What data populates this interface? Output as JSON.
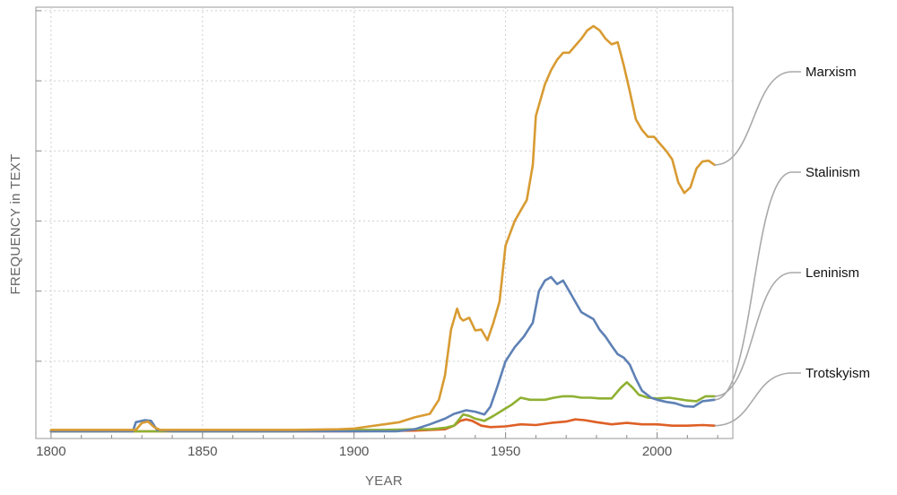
{
  "chart_data": {
    "type": "line",
    "xlabel": "YEAR",
    "ylabel": "FREQUENCY in TEXT",
    "xlim": [
      1795,
      2025
    ],
    "ylim": [
      0,
      6.05
    ],
    "x_ticks": [
      "1800",
      "1850",
      "1900",
      "1950",
      "2000"
    ],
    "grid": true,
    "legend": "right, labels connected to line ends",
    "y_scale": "relative (no tick labels)",
    "series": [
      {
        "name": "Marxism",
        "color": "#D89B32",
        "points": [
          [
            1800,
            0.02
          ],
          [
            1810,
            0.02
          ],
          [
            1826,
            0.02
          ],
          [
            1828,
            0.02
          ],
          [
            1830,
            0.12
          ],
          [
            1832,
            0.14
          ],
          [
            1834,
            0.06
          ],
          [
            1836,
            0.02
          ],
          [
            1850,
            0.02
          ],
          [
            1880,
            0.02
          ],
          [
            1895,
            0.03
          ],
          [
            1900,
            0.04
          ],
          [
            1905,
            0.07
          ],
          [
            1910,
            0.1
          ],
          [
            1915,
            0.13
          ],
          [
            1920,
            0.2
          ],
          [
            1925,
            0.25
          ],
          [
            1928,
            0.45
          ],
          [
            1930,
            0.8
          ],
          [
            1932,
            1.45
          ],
          [
            1934,
            1.75
          ],
          [
            1935,
            1.62
          ],
          [
            1936,
            1.58
          ],
          [
            1938,
            1.62
          ],
          [
            1940,
            1.44
          ],
          [
            1942,
            1.45
          ],
          [
            1944,
            1.3
          ],
          [
            1946,
            1.55
          ],
          [
            1948,
            1.85
          ],
          [
            1950,
            2.65
          ],
          [
            1953,
            3.0
          ],
          [
            1955,
            3.15
          ],
          [
            1957,
            3.3
          ],
          [
            1959,
            3.8
          ],
          [
            1960,
            4.5
          ],
          [
            1963,
            4.95
          ],
          [
            1965,
            5.15
          ],
          [
            1967,
            5.3
          ],
          [
            1969,
            5.4
          ],
          [
            1971,
            5.4
          ],
          [
            1973,
            5.5
          ],
          [
            1975,
            5.6
          ],
          [
            1977,
            5.72
          ],
          [
            1979,
            5.78
          ],
          [
            1981,
            5.72
          ],
          [
            1983,
            5.6
          ],
          [
            1985,
            5.52
          ],
          [
            1987,
            5.55
          ],
          [
            1989,
            5.22
          ],
          [
            1991,
            4.85
          ],
          [
            1993,
            4.45
          ],
          [
            1995,
            4.3
          ],
          [
            1997,
            4.2
          ],
          [
            1999,
            4.2
          ],
          [
            2001,
            4.1
          ],
          [
            2003,
            4.0
          ],
          [
            2005,
            3.88
          ],
          [
            2007,
            3.55
          ],
          [
            2009,
            3.4
          ],
          [
            2011,
            3.48
          ],
          [
            2013,
            3.75
          ],
          [
            2015,
            3.85
          ],
          [
            2017,
            3.86
          ],
          [
            2019,
            3.8
          ]
        ]
      },
      {
        "name": "Stalinism",
        "color": "#5E81B5",
        "points": [
          [
            1800,
            0.0
          ],
          [
            1827,
            0.0
          ],
          [
            1828,
            0.13
          ],
          [
            1831,
            0.16
          ],
          [
            1833,
            0.15
          ],
          [
            1835,
            0.02
          ],
          [
            1840,
            0.0
          ],
          [
            1900,
            0.0
          ],
          [
            1914,
            0.0
          ],
          [
            1920,
            0.03
          ],
          [
            1925,
            0.1
          ],
          [
            1930,
            0.18
          ],
          [
            1933,
            0.25
          ],
          [
            1937,
            0.3
          ],
          [
            1940,
            0.28
          ],
          [
            1943,
            0.24
          ],
          [
            1945,
            0.35
          ],
          [
            1947,
            0.6
          ],
          [
            1950,
            1.0
          ],
          [
            1953,
            1.2
          ],
          [
            1956,
            1.35
          ],
          [
            1959,
            1.55
          ],
          [
            1961,
            2.0
          ],
          [
            1963,
            2.15
          ],
          [
            1965,
            2.2
          ],
          [
            1967,
            2.1
          ],
          [
            1969,
            2.15
          ],
          [
            1971,
            2.0
          ],
          [
            1973,
            1.85
          ],
          [
            1975,
            1.7
          ],
          [
            1977,
            1.65
          ],
          [
            1979,
            1.6
          ],
          [
            1981,
            1.45
          ],
          [
            1983,
            1.35
          ],
          [
            1985,
            1.22
          ],
          [
            1987,
            1.1
          ],
          [
            1989,
            1.05
          ],
          [
            1991,
            0.95
          ],
          [
            1993,
            0.75
          ],
          [
            1995,
            0.58
          ],
          [
            1998,
            0.48
          ],
          [
            2000,
            0.45
          ],
          [
            2003,
            0.42
          ],
          [
            2006,
            0.4
          ],
          [
            2009,
            0.36
          ],
          [
            2012,
            0.35
          ],
          [
            2015,
            0.43
          ],
          [
            2019,
            0.45
          ]
        ]
      },
      {
        "name": "Leninism",
        "color": "#8FB032",
        "points": [
          [
            1800,
            0.0
          ],
          [
            1880,
            0.0
          ],
          [
            1890,
            0.02
          ],
          [
            1900,
            0.02
          ],
          [
            1910,
            0.02
          ],
          [
            1920,
            0.03
          ],
          [
            1925,
            0.03
          ],
          [
            1930,
            0.05
          ],
          [
            1933,
            0.08
          ],
          [
            1936,
            0.24
          ],
          [
            1938,
            0.22
          ],
          [
            1940,
            0.18
          ],
          [
            1943,
            0.15
          ],
          [
            1946,
            0.22
          ],
          [
            1949,
            0.3
          ],
          [
            1952,
            0.38
          ],
          [
            1955,
            0.48
          ],
          [
            1958,
            0.45
          ],
          [
            1960,
            0.45
          ],
          [
            1963,
            0.45
          ],
          [
            1966,
            0.48
          ],
          [
            1969,
            0.5
          ],
          [
            1972,
            0.5
          ],
          [
            1975,
            0.48
          ],
          [
            1978,
            0.48
          ],
          [
            1981,
            0.47
          ],
          [
            1985,
            0.47
          ],
          [
            1988,
            0.62
          ],
          [
            1990,
            0.7
          ],
          [
            1992,
            0.62
          ],
          [
            1994,
            0.52
          ],
          [
            1997,
            0.48
          ],
          [
            2000,
            0.47
          ],
          [
            2004,
            0.48
          ],
          [
            2007,
            0.46
          ],
          [
            2010,
            0.44
          ],
          [
            2013,
            0.43
          ],
          [
            2016,
            0.5
          ],
          [
            2019,
            0.5
          ]
        ]
      },
      {
        "name": "Trotskyism",
        "color": "#DE6026",
        "points": [
          [
            1800,
            0.0
          ],
          [
            1900,
            0.0
          ],
          [
            1920,
            0.01
          ],
          [
            1930,
            0.03
          ],
          [
            1933,
            0.08
          ],
          [
            1935,
            0.15
          ],
          [
            1937,
            0.17
          ],
          [
            1939,
            0.15
          ],
          [
            1942,
            0.08
          ],
          [
            1945,
            0.06
          ],
          [
            1950,
            0.07
          ],
          [
            1955,
            0.1
          ],
          [
            1960,
            0.09
          ],
          [
            1965,
            0.12
          ],
          [
            1970,
            0.14
          ],
          [
            1973,
            0.17
          ],
          [
            1976,
            0.16
          ],
          [
            1980,
            0.13
          ],
          [
            1985,
            0.1
          ],
          [
            1990,
            0.12
          ],
          [
            1995,
            0.1
          ],
          [
            2000,
            0.1
          ],
          [
            2005,
            0.08
          ],
          [
            2010,
            0.08
          ],
          [
            2015,
            0.09
          ],
          [
            2019,
            0.08
          ]
        ]
      }
    ],
    "legend_entries": [
      "Marxism",
      "Stalinism",
      "Leninism",
      "Trotskyism"
    ]
  }
}
